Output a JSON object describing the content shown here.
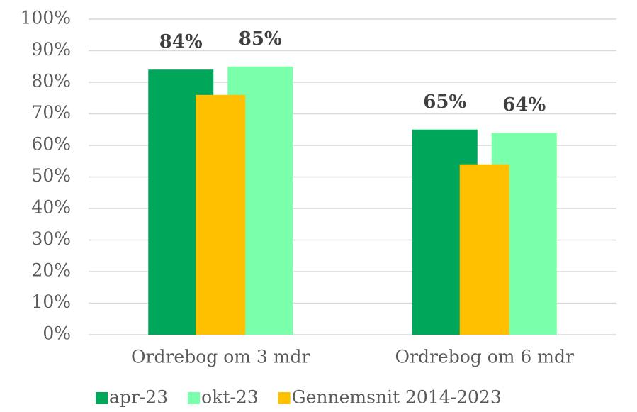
{
  "chart_data": {
    "type": "bar",
    "categories": [
      "Ordrebog om 3 mdr",
      "Ordrebog om 6 mdr"
    ],
    "series": [
      {
        "name": "apr-23",
        "color": "#00a65a",
        "values": [
          84,
          65
        ],
        "value_labels": [
          "84%",
          "65%"
        ]
      },
      {
        "name": "okt-23",
        "color": "#7affaa",
        "values": [
          85,
          64
        ],
        "value_labels": [
          "85%",
          "64%"
        ]
      },
      {
        "name": "Gennemsnit 2014-2023",
        "color": "#ffc000",
        "values": [
          76,
          54
        ]
      }
    ],
    "ylim": [
      0,
      100
    ],
    "yticks": [
      {
        "value": 0,
        "label": "0%"
      },
      {
        "value": 10,
        "label": "10%"
      },
      {
        "value": 20,
        "label": "20%"
      },
      {
        "value": 30,
        "label": "30%"
      },
      {
        "value": 40,
        "label": "40%"
      },
      {
        "value": 50,
        "label": "50%"
      },
      {
        "value": 60,
        "label": "60%"
      },
      {
        "value": 70,
        "label": "70%"
      },
      {
        "value": 80,
        "label": "80%"
      },
      {
        "value": 90,
        "label": "90%"
      },
      {
        "value": 100,
        "label": "100%"
      }
    ],
    "grid": true,
    "legend": "bottom"
  }
}
